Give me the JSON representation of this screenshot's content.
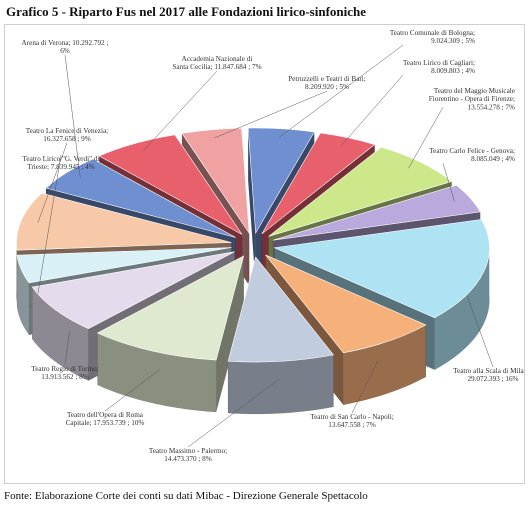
{
  "title": "Grafico 5 - Riparto Fus nel 2017 alle Fondazioni lirico-sinfoniche",
  "source": "Fonte: Elaborazione Corte dei conti su dati Mibac - Direzione Generale Spettacolo",
  "chart_data": {
    "type": "pie",
    "style": "3d-exploded",
    "slices": [
      {
        "lines": [
          "Teatro Comunale di Bologna;",
          "9.024.309 ; 5%"
        ],
        "value": 9024309,
        "percent": 5,
        "color": "#6f8fd0",
        "label_pos": "top-right"
      },
      {
        "lines": [
          "Teatro Lirico di Cagliari;",
          "8.009.803 ; 4%"
        ],
        "value": 8009803,
        "percent": 4,
        "color": "#e8606c",
        "label_pos": "right"
      },
      {
        "lines": [
          "Teatro del Maggio Musicale",
          "Fiorentino - Opera di Firenze;",
          "13.554.278 ; 7%"
        ],
        "value": 13554278,
        "percent": 7,
        "color": "#cde88a",
        "label_pos": "right"
      },
      {
        "lines": [
          "Teatro Carlo Felice - Genova;",
          "8.085.049 ; 4%"
        ],
        "value": 8085049,
        "percent": 4,
        "color": "#b9a9dc",
        "label_pos": "right"
      },
      {
        "lines": [
          "Teatro alla Scala di Milano;",
          "29.072.393 ; 16%"
        ],
        "value": 29072393,
        "percent": 16,
        "color": "#aee3f3",
        "label_pos": "bottom-right"
      },
      {
        "lines": [
          "Teatro di San Carlo - Napoli;",
          "13.647.558 ; 7%"
        ],
        "value": 13647558,
        "percent": 7,
        "color": "#f6b07a",
        "label_pos": "bottom"
      },
      {
        "lines": [
          "Teatro Massimo - Palermo;",
          "14.473.370 ; 8%"
        ],
        "value": 14473370,
        "percent": 8,
        "color": "#c2ccdf",
        "label_pos": "bottom"
      },
      {
        "lines": [
          "Teatro dell'Opera di Roma",
          "Capitale; 17.953.739 ; 10%"
        ],
        "value": 17953739,
        "percent": 10,
        "color": "#dfe9cf",
        "label_pos": "bottom-left"
      },
      {
        "lines": [
          "Teatro Regio di Torino;",
          "13.913.562 ; 8%"
        ],
        "value": 13913562,
        "percent": 8,
        "color": "#e4dcec",
        "label_pos": "left"
      },
      {
        "lines": [
          "Teatro Lirico \"G. Verdi\" di",
          "Trieste; 7.839.945 ; 4%"
        ],
        "value": 7839945,
        "percent": 4,
        "color": "#d9f0f7",
        "label_pos": "left"
      },
      {
        "lines": [
          "Teatro La Fenice di Venezia;",
          "16.327.658 ; 9%"
        ],
        "value": 16327658,
        "percent": 9,
        "color": "#f8c9a8",
        "label_pos": "left"
      },
      {
        "lines": [
          "Arena di Verona; 10.292.792 ;",
          "6%"
        ],
        "value": 10292792,
        "percent": 6,
        "color": "#6f8fd0",
        "label_pos": "top-left"
      },
      {
        "lines": [
          "Accademia Nazionale di",
          "Santa Cecilia; 11.847.684 ; 7%"
        ],
        "value": 11847684,
        "percent": 7,
        "color": "#e8606c",
        "label_pos": "top"
      },
      {
        "lines": [
          "Petruzzelli e Teatri di Bari;",
          "8.209.920 ; 5%"
        ],
        "value": 8209920,
        "percent": 5,
        "color": "#f0a2a2",
        "label_pos": "top"
      }
    ]
  }
}
